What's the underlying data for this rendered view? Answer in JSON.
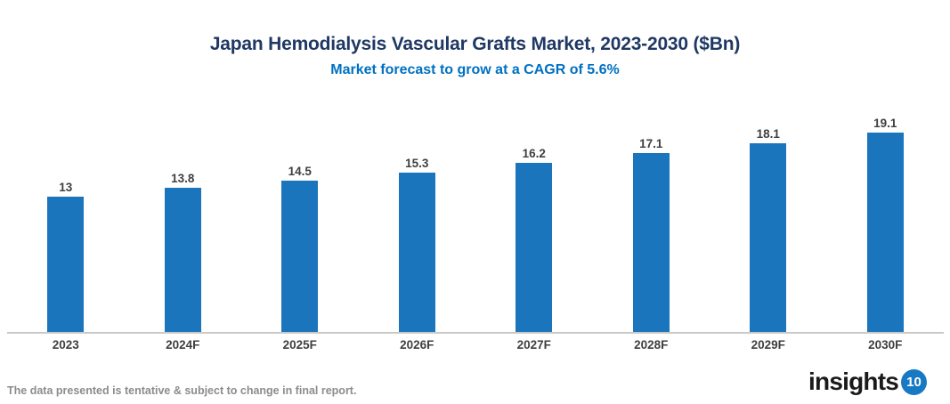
{
  "header": {
    "title": "Japan Hemodialysis Vascular Grafts Market, 2023-2030 ($Bn)",
    "subtitle": "Market forecast to grow at a CAGR of 5.6%"
  },
  "chart_data": {
    "type": "bar",
    "categories": [
      "2023",
      "2024F",
      "2025F",
      "2026F",
      "2027F",
      "2028F",
      "2029F",
      "2030F"
    ],
    "values": [
      13,
      13.8,
      14.5,
      15.3,
      16.2,
      17.1,
      18.1,
      19.1
    ],
    "value_labels": [
      "13",
      "13.8",
      "14.5",
      "15.3",
      "16.2",
      "17.1",
      "18.1",
      "19.1"
    ],
    "title": "Japan Hemodialysis Vascular Grafts Market, 2023-2030 ($Bn)",
    "subtitle": "Market forecast to grow at a CAGR of 5.6%",
    "xlabel": "",
    "ylabel": "",
    "ylim": [
      0,
      20
    ],
    "grid": false,
    "legend": false,
    "bar_color": "#1B75BC",
    "data_label_color": "#3F3F3F",
    "axis_line_color": "#C9C9C9"
  },
  "colors": {
    "title": "#1F3864",
    "subtitle": "#0070C0",
    "bar": "#1B75BC",
    "axis_line": "#C9C9C9",
    "footer_text": "#8C8C8C",
    "logo_text": "#1A1A1A",
    "logo_circle": "#1779C4"
  },
  "footer": {
    "disclaimer": "The data presented is tentative & subject to change in final report.",
    "logo": {
      "text": "insights",
      "badge": "10"
    }
  }
}
